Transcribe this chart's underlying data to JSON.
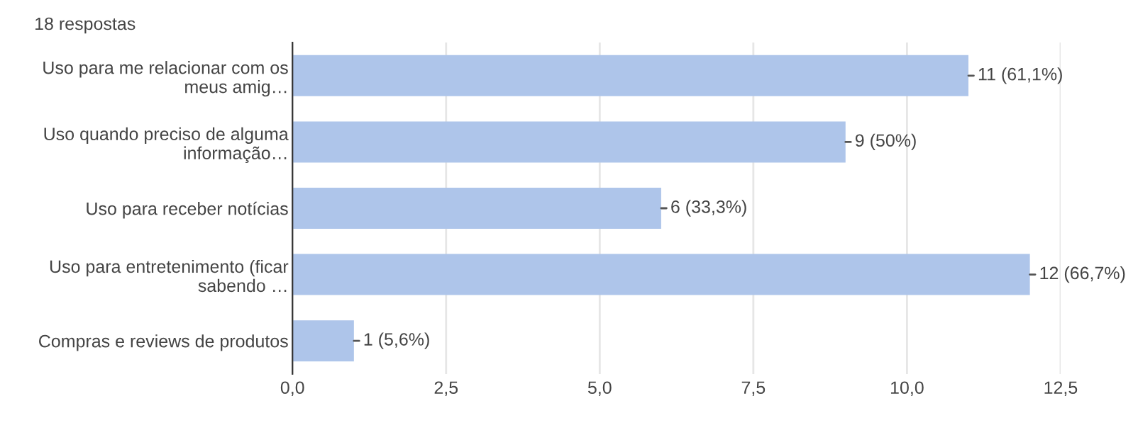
{
  "chart_data": {
    "type": "bar",
    "orientation": "horizontal",
    "annotations": [
      "18 respostas"
    ],
    "categories": [
      "Uso para me relacionar com os\nmeus amig…",
      "Uso quando preciso de alguma\ninformação…",
      "Uso para receber notícias",
      "Uso para entretenimento (ficar\nsabendo …",
      "Compras e reviews de produtos"
    ],
    "values": [
      11,
      9,
      6,
      12,
      1
    ],
    "value_labels": [
      "11 (61,1%)",
      "9 (50%)",
      "6 (33,3%)",
      "12 (66,7%)",
      "1 (5,6%)"
    ],
    "color": "#aec5ea",
    "xlim": [
      0,
      12.5
    ],
    "xticks": [
      {
        "value": 0,
        "label": "0,0"
      },
      {
        "value": 2.5,
        "label": "2,5"
      },
      {
        "value": 5,
        "label": "5,0"
      },
      {
        "value": 7.5,
        "label": "7,5"
      },
      {
        "value": 10,
        "label": "10,0"
      },
      {
        "value": 12.5,
        "label": "12,5"
      }
    ],
    "grid": "x"
  }
}
